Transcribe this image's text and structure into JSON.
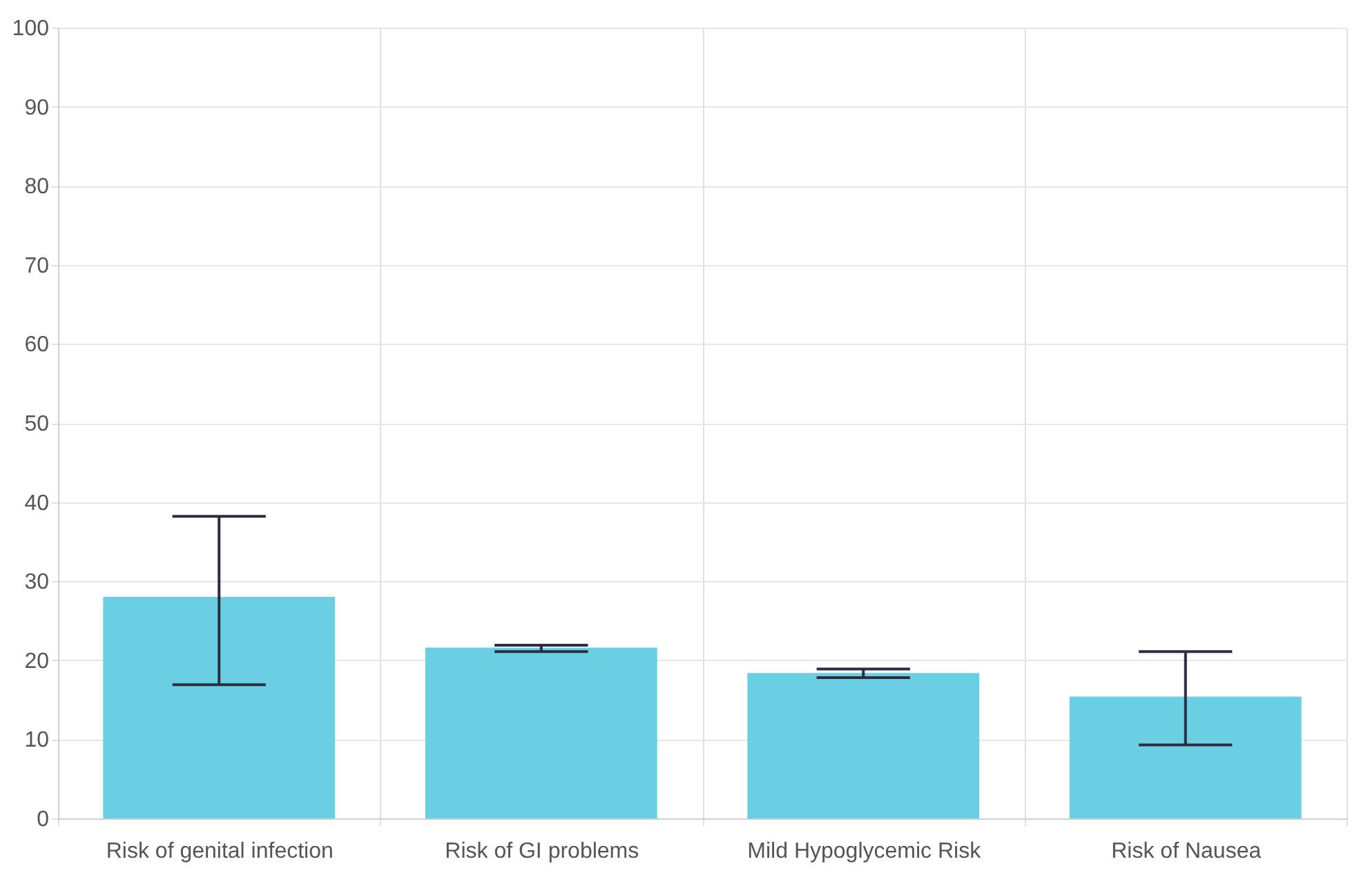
{
  "chart_data": {
    "type": "bar",
    "categories": [
      "Risk of genital infection",
      "Risk of GI problems",
      "Mild Hypoglycemic Risk",
      "Risk of Nausea"
    ],
    "values": [
      28.0,
      21.6,
      18.4,
      15.4
    ],
    "errors": [
      [
        16.9,
        38.2
      ],
      [
        21.1,
        21.9
      ],
      [
        17.8,
        18.9
      ],
      [
        9.3,
        21.1
      ]
    ],
    "color": "#6acfe3",
    "ylim": [
      0,
      100
    ],
    "yticks": [
      0,
      10,
      20,
      30,
      40,
      50,
      60,
      70,
      80,
      90,
      100
    ],
    "grid": true
  }
}
